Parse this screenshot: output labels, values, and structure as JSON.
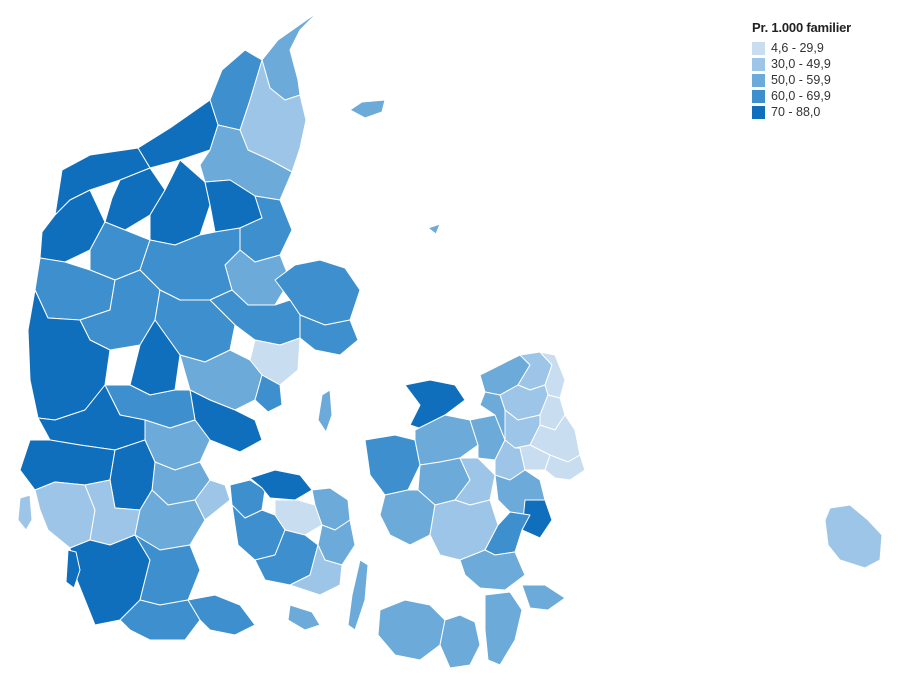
{
  "legend": {
    "title": "Pr. 1.000 familier",
    "classes": [
      {
        "label": "4,6 - 29,9",
        "color": "#c9ddf1"
      },
      {
        "label": "30,0 - 49,9",
        "color": "#9dc5e8"
      },
      {
        "label": "50,0 - 59,9",
        "color": "#6baad9"
      },
      {
        "label": "60,0 - 69,9",
        "color": "#3d8fce"
      },
      {
        "label": "70 - 88,0",
        "color": "#0f6fbd"
      }
    ]
  }
}
